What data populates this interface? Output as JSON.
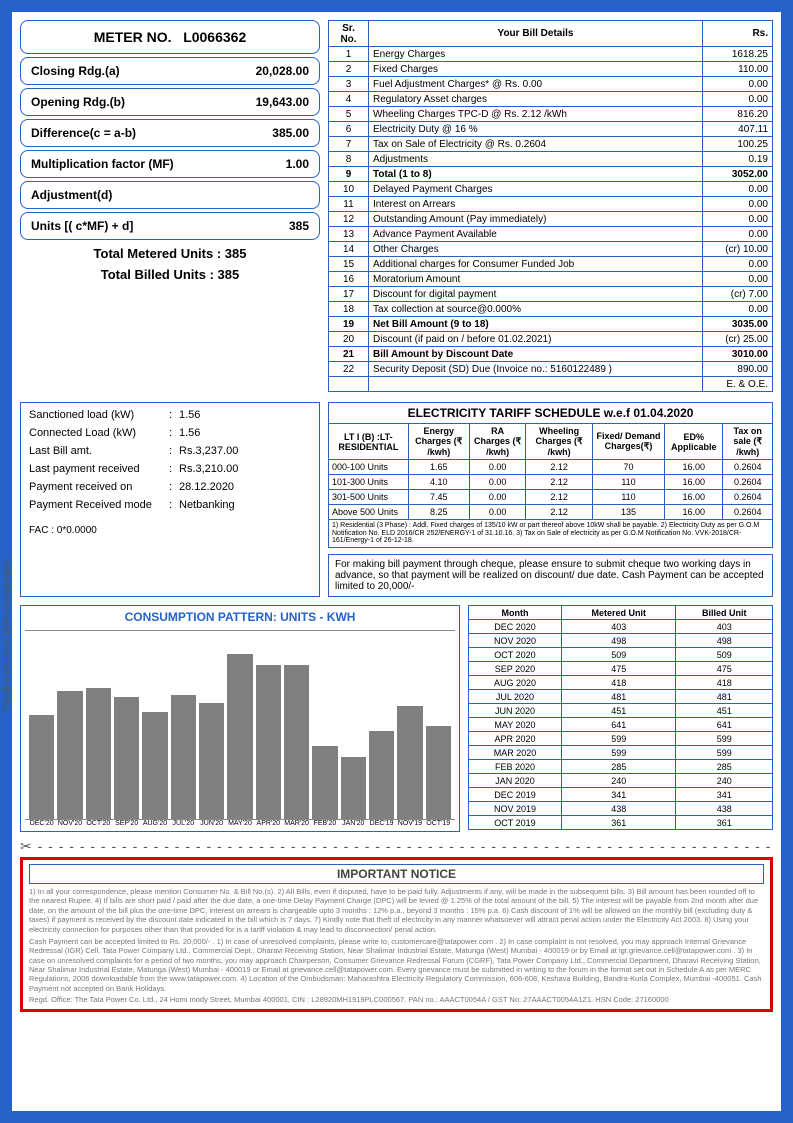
{
  "meter": {
    "header_label": "METER NO.",
    "number": "L0066362",
    "closing_label": "Closing Rdg.(a)",
    "closing": "20,028.00",
    "opening_label": "Opening Rdg.(b)",
    "opening": "19,643.00",
    "diff_label": "Difference(c = a-b)",
    "diff": "385.00",
    "mf_label": "Multiplication factor (MF)",
    "mf": "1.00",
    "adj_label": "Adjustment(d)",
    "adj": "",
    "units_label": "Units [( c*MF) + d]",
    "units": "385",
    "total_metered": "Total Metered Units : 385",
    "total_billed": "Total Billed Units : 385"
  },
  "bill": {
    "h1": "Sr. No.",
    "h2": "Your Bill Details",
    "h3": "Rs.",
    "rows": [
      {
        "sr": "1",
        "d": "Energy Charges",
        "rs": "1618.25"
      },
      {
        "sr": "2",
        "d": "Fixed Charges",
        "rs": "110.00"
      },
      {
        "sr": "3",
        "d": "Fuel Adjustment Charges* @ Rs. 0.00",
        "rs": "0.00"
      },
      {
        "sr": "4",
        "d": "Regulatory Asset charges",
        "rs": "0.00"
      },
      {
        "sr": "5",
        "d": "Wheeling Charges TPC-D @ Rs. 2.12 /kWh",
        "rs": "816.20"
      },
      {
        "sr": "6",
        "d": "Electricity Duty @ 16 %",
        "rs": "407.11"
      },
      {
        "sr": "7",
        "d": "Tax on Sale of Electricity @ Rs. 0.2604",
        "rs": "100.25"
      },
      {
        "sr": "8",
        "d": "Adjustments",
        "rs": "0.19"
      },
      {
        "sr": "9",
        "d": "Total (1 to 8)",
        "rs": "3052.00",
        "b": true
      },
      {
        "sr": "10",
        "d": "Delayed Payment Charges",
        "rs": "0.00"
      },
      {
        "sr": "11",
        "d": "Interest on Arrears",
        "rs": "0.00"
      },
      {
        "sr": "12",
        "d": "Outstanding Amount (Pay immediately)",
        "rs": "0.00"
      },
      {
        "sr": "13",
        "d": "Advance Payment Available",
        "rs": "0.00"
      },
      {
        "sr": "14",
        "d": "Other Charges",
        "rs": "(cr) 10.00"
      },
      {
        "sr": "15",
        "d": "Additional charges for Consumer Funded Job",
        "rs": "0.00"
      },
      {
        "sr": "16",
        "d": "Moratorium Amount",
        "rs": "0.00"
      },
      {
        "sr": "17",
        "d": "Discount for digital payment",
        "rs": "(cr) 7.00"
      },
      {
        "sr": "18",
        "d": "Tax collection at source@0.000%",
        "rs": "0.00"
      },
      {
        "sr": "19",
        "d": "Net Bill Amount (9 to 18)",
        "rs": "3035.00",
        "b": true
      },
      {
        "sr": "20",
        "d": "Discount (if paid on / before 01.02.2021)",
        "rs": "(cr) 25.00"
      },
      {
        "sr": "21",
        "d": "Bill Amount by Discount Date",
        "rs": "3010.00",
        "b": true
      },
      {
        "sr": "22",
        "d": "Security Deposit (SD) Due (Invoice no.: 5160122489 )",
        "rs": "890.00"
      },
      {
        "sr": "",
        "d": "",
        "rs": "E. & O.E."
      }
    ]
  },
  "info": {
    "rows": [
      {
        "l": "Sanctioned load (kW)",
        "v": "1.56"
      },
      {
        "l": "Connected Load (kW)",
        "v": "1.56"
      },
      {
        "l": "Last Bill amt.",
        "v": "Rs.3,237.00"
      },
      {
        "l": "Last payment received",
        "v": "Rs.3,210.00"
      },
      {
        "l": "Payment received on",
        "v": "28.12.2020"
      },
      {
        "l": "Payment Received mode",
        "v": "Netbanking"
      }
    ],
    "fac": "FAC : 0*0.0000"
  },
  "tariff": {
    "title": "ELECTRICITY TARIFF SCHEDULE w.e.f 01.04.2020",
    "h": [
      "LT I (B) :LT-RESIDENTIAL",
      "Energy Charges (₹ /kwh)",
      "RA Charges (₹ /kwh)",
      "Wheeling Charges (₹ /kwh)",
      "Fixed/ Demand Charges(₹)",
      "ED% Applicable",
      "Tax on sale (₹ /kwh)"
    ],
    "rows": [
      [
        "000-100 Units",
        "1.65",
        "0.00",
        "2.12",
        "70",
        "16.00",
        "0.2604"
      ],
      [
        "101-300 Units",
        "4.10",
        "0.00",
        "2.12",
        "110",
        "16.00",
        "0.2604"
      ],
      [
        "301-500 Units",
        "7.45",
        "0.00",
        "2.12",
        "110",
        "16.00",
        "0.2604"
      ],
      [
        "Above 500 Units",
        "8.25",
        "0.00",
        "2.12",
        "135",
        "16.00",
        "0.2604"
      ]
    ],
    "note": "1) Residential (3 Phase) : Addl. Fixed charges of 135/10 kW or part thereof above 10kW shall be payable. 2) Electricity Duty as per G.O.M Notification No. ELD 2016/CR 252/ENERGY-1 of 31.10.16. 3) Tax on Sale of electricity as per G.O.M Notification No. VVK-2018/CR-161/Energy-1 of 26-12-18.",
    "cheque": "For making bill payment through cheque, please ensure to submit cheque two working days in advance, so that payment will be realized on discount/ due date. Cash Payment can be accepted limited to 20,000/-"
  },
  "chart": {
    "title": "CONSUMPTION PATTERN: UNITS - KWH",
    "bar_color": "#808080",
    "max": 700,
    "bars": [
      {
        "m": "DEC'20",
        "v": 403
      },
      {
        "m": "NOV'20",
        "v": 498
      },
      {
        "m": "OCT'20",
        "v": 509
      },
      {
        "m": "SEP'20",
        "v": 475
      },
      {
        "m": "AUG'20",
        "v": 418
      },
      {
        "m": "JUL'20",
        "v": 481
      },
      {
        "m": "JUN'20",
        "v": 451
      },
      {
        "m": "MAY'20",
        "v": 641
      },
      {
        "m": "APR'20",
        "v": 599
      },
      {
        "m": "MAR'20",
        "v": 599
      },
      {
        "m": "FEB'20",
        "v": 285
      },
      {
        "m": "JAN'20",
        "v": 240
      },
      {
        "m": "DEC'19",
        "v": 341
      },
      {
        "m": "NOV'19",
        "v": 438
      },
      {
        "m": "OCT'19",
        "v": 361
      }
    ]
  },
  "hist": {
    "h": [
      "Month",
      "Metered Unit",
      "Billed Unit"
    ],
    "rows": [
      [
        "DEC 2020",
        "403",
        "403"
      ],
      [
        "NOV 2020",
        "498",
        "498"
      ],
      [
        "OCT 2020",
        "509",
        "509"
      ],
      [
        "SEP 2020",
        "475",
        "475"
      ],
      [
        "AUG 2020",
        "418",
        "418"
      ],
      [
        "JUL 2020",
        "481",
        "481"
      ],
      [
        "JUN 2020",
        "451",
        "451"
      ],
      [
        "MAY 2020",
        "641",
        "641"
      ],
      [
        "APR 2020",
        "599",
        "599"
      ],
      [
        "MAR 2020",
        "599",
        "599"
      ],
      [
        "FEB 2020",
        "285",
        "285"
      ],
      [
        "JAN 2020",
        "240",
        "240"
      ],
      [
        "DEC 2019",
        "341",
        "341"
      ],
      [
        "NOV 2019",
        "438",
        "438"
      ],
      [
        "OCT 2019",
        "361",
        "361"
      ]
    ]
  },
  "notice": {
    "title": "IMPORTANT NOTICE",
    "p1": "1) In all your correspondence, please mention Consumer No. & Bill No.(s). 2) All Bills, even if disputed, have to be paid fully. Adjustments if any, will be made in the subsequent bills. 3) Bill amount has been rounded off to the nearest Rupee. 4) If bills are short paid / paid after the due date, a one-time Delay Payment Charge (DPC) will be levied @ 1.25% of the total amount of the bill. 5) The interest will be payable from 2nd month after due date, on the amount of the bill plus the one-time DPC, interest on arrears is chargeable upto 3 months : 12% p.a., beyond 3 months : 15% p.a. 6) Cash discount of 1% will be allowed on the monthly bill (excluding duty & taxes) if payment is received by the discount date indicated in the bill which is 7 days. 7) Kindly note that theft of electricity in any manner whatsoever will attract penal action under the Electricity Act 2003. 8) Using your electricity connection for purposes other than that provided for is a tariff violation & may lead to disconnection/ penal action.",
    "p2": "Cash Payment can be accepted limited to Rs. 20,000/- . 1) In case of unresolved complaints, please write to, customercare@tatapower.com . 2) In case complaint is not resolved, you may approach Internal Grievance Redressal (IGR) Cell. Tata Power Company Ltd., Commercial Dept., Dharavi Receiving Station, Near Shalimar Industrial Estate, Matunga (West) Mumbai - 400019 or by Email at igr.grievance.cell@tatapower.com . 3) In case on unresolved complaints for a period of two months, you may approach Chairperson, Consumer Grievance Redressal Forum (CGRF), Tata Power Company Ltd., Commercial Department, Dharavi Receiving Station, Near Shalimar Industrial Estate, Matunga (West) Mumbai - 400019 or Email at grievance.cell@tatapower.com. Every grievance must be submitted in writing to the forum in the format set out in Schedule A as per MERC Regulations, 2006 downloadable from the www.tatapower.com. 4) Location of the Ombudsman: Maharashtra Electricity Regulatory Commission, 606-608, Keshava Building, Bandra-Kurla Complex, Mumbai -400051. Cash Payment not accepted on Bank Holidays.",
    "p3": "Regd. Office: The Tata Power Co. Ltd., 24 Homi mody Street, Mumbai 400001, CIN : L28920MH1919PLC000567. PAN no.: AAACT0054A / GST No: 27AAACT0054A1Z1. HSN Code: 27160000"
  },
  "side": "This Bill is printed on 100% recycled paper."
}
